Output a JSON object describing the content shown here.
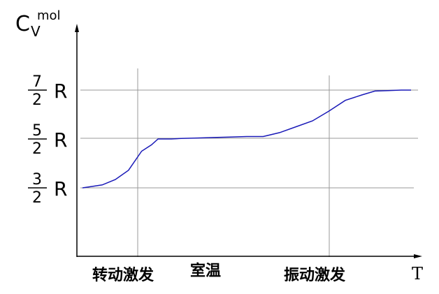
{
  "chart_data": {
    "type": "line",
    "ylabel": {
      "main": "C",
      "sup": "mol",
      "sub": "V"
    },
    "xlabel": "T",
    "y_ticks": [
      {
        "value": 1.5,
        "num": "3",
        "den": "2",
        "unit": "R"
      },
      {
        "value": 2.5,
        "num": "5",
        "den": "2",
        "unit": "R"
      },
      {
        "value": 3.5,
        "num": "7",
        "den": "2",
        "unit": "R"
      }
    ],
    "region_labels": [
      "转动激发",
      "室温",
      "振动激发"
    ],
    "series": [
      {
        "color": "#1a1ab8",
        "x": [
          0.0,
          0.02,
          0.06,
          0.1,
          0.14,
          0.18,
          0.21,
          0.23,
          0.27,
          0.3,
          0.35,
          0.4,
          0.45,
          0.5,
          0.55,
          0.6,
          0.65,
          0.7,
          0.75,
          0.8,
          0.85,
          0.89,
          0.93,
          0.97,
          1.0
        ],
        "y": [
          1.5,
          1.52,
          1.56,
          1.67,
          1.86,
          2.25,
          2.38,
          2.5,
          2.5,
          2.51,
          2.52,
          2.53,
          2.54,
          2.55,
          2.55,
          2.63,
          2.75,
          2.87,
          3.07,
          3.29,
          3.4,
          3.48,
          3.49,
          3.5,
          3.5
        ]
      }
    ],
    "xlim": [
      0,
      1
    ],
    "ylim": [
      0,
      5
    ],
    "grid": "partial"
  }
}
